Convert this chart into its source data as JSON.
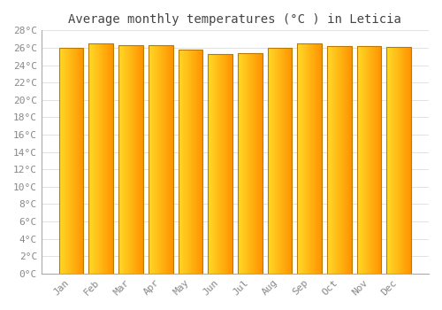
{
  "title": "Average monthly temperatures (°C ) in Leticia",
  "months": [
    "Jan",
    "Feb",
    "Mar",
    "Apr",
    "May",
    "Jun",
    "Jul",
    "Aug",
    "Sep",
    "Oct",
    "Nov",
    "Dec"
  ],
  "temperatures": [
    26.0,
    26.5,
    26.3,
    26.3,
    25.8,
    25.3,
    25.4,
    26.0,
    26.5,
    26.2,
    26.2,
    26.1
  ],
  "bar_color_left": "#FFD966",
  "bar_color_right": "#E8920A",
  "bar_edge_color": "#B87A00",
  "background_color": "#FFFFFF",
  "plot_bg_color": "#FFFFFF",
  "grid_color": "#DDDDDD",
  "ytick_labels": [
    "0°C",
    "2°C",
    "4°C",
    "6°C",
    "8°C",
    "10°C",
    "12°C",
    "14°C",
    "16°C",
    "18°C",
    "20°C",
    "22°C",
    "24°C",
    "26°C",
    "28°C"
  ],
  "ytick_values": [
    0,
    2,
    4,
    6,
    8,
    10,
    12,
    14,
    16,
    18,
    20,
    22,
    24,
    26,
    28
  ],
  "ylim": [
    0,
    28
  ],
  "title_fontsize": 10,
  "tick_fontsize": 8,
  "tick_font_color": "#888888",
  "figsize": [
    5.0,
    3.5
  ],
  "dpi": 100,
  "bar_width": 0.82
}
